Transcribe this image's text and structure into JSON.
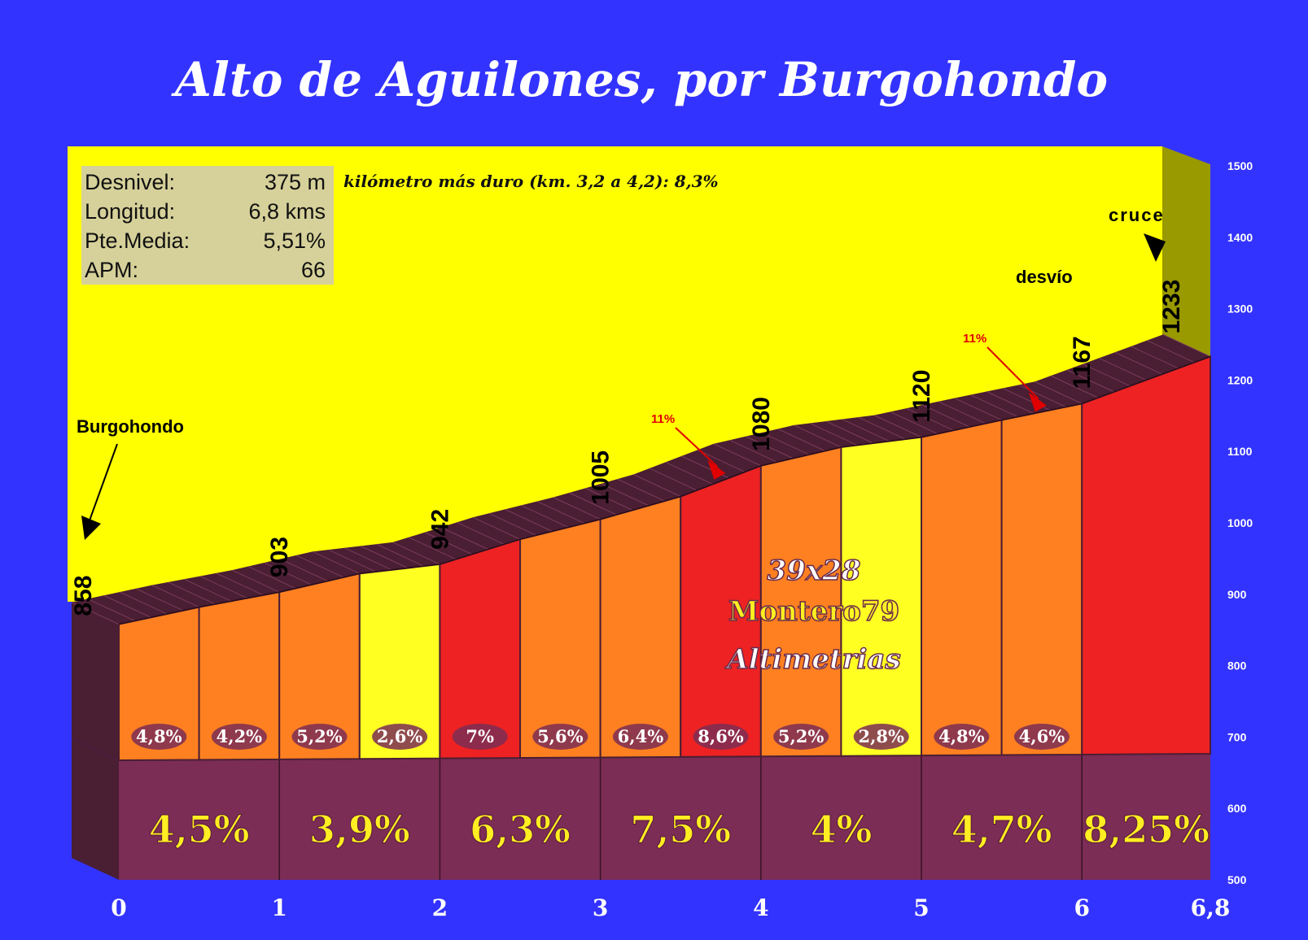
{
  "title": "Alto de Aguilones, por Burgohondo",
  "stats": [
    {
      "label": "Desnivel:",
      "value": "375 m"
    },
    {
      "label": "Longitud:",
      "value": "6,8 kms"
    },
    {
      "label": "Pte.Media:",
      "value": "5,51%"
    },
    {
      "label": "APM:",
      "value": "66"
    }
  ],
  "note": "kilómetro más duro (km. 3,2 a 4,2):  8,3%",
  "credits": {
    "gearing": "39x28",
    "author": "Montero79",
    "site": "Altimetrias"
  },
  "colors": {
    "background": "#3333ff",
    "sky": "#ffff00",
    "base": "#7b2d55",
    "orange": "#ff8020",
    "yellow": "#ffff22",
    "red": "#ee2222",
    "side": "#4a1e33",
    "tower": "#999900"
  },
  "chart_data": {
    "type": "area",
    "xlabel": "",
    "ylabel": "",
    "xlim": [
      0,
      6.8
    ],
    "ylim": [
      500,
      1500
    ],
    "x_ticks": [
      "0",
      "1",
      "2",
      "3",
      "4",
      "5",
      "6",
      "6,8"
    ],
    "y_ticks": [
      "1500",
      "1400",
      "1300",
      "1200",
      "1100",
      "1000",
      "900",
      "800",
      "700",
      "600",
      "500"
    ],
    "profile": [
      {
        "km": 0,
        "elev": 858
      },
      {
        "km": 0.5,
        "elev": 882
      },
      {
        "km": 1,
        "elev": 903
      },
      {
        "km": 1.5,
        "elev": 929
      },
      {
        "km": 2,
        "elev": 942
      },
      {
        "km": 2.5,
        "elev": 977
      },
      {
        "km": 3,
        "elev": 1005
      },
      {
        "km": 3.5,
        "elev": 1037
      },
      {
        "km": 4,
        "elev": 1080
      },
      {
        "km": 4.5,
        "elev": 1106
      },
      {
        "km": 5,
        "elev": 1120
      },
      {
        "km": 5.5,
        "elev": 1144
      },
      {
        "km": 6,
        "elev": 1167
      },
      {
        "km": 6.8,
        "elev": 1233
      }
    ],
    "half_km_gradients": [
      {
        "label": "4,8%",
        "color": "orange"
      },
      {
        "label": "4,2%",
        "color": "orange"
      },
      {
        "label": "5,2%",
        "color": "orange"
      },
      {
        "label": "2,6%",
        "color": "yellow"
      },
      {
        "label": "7%",
        "color": "red"
      },
      {
        "label": "5,6%",
        "color": "orange"
      },
      {
        "label": "6,4%",
        "color": "orange"
      },
      {
        "label": "8,6%",
        "color": "red"
      },
      {
        "label": "5,2%",
        "color": "orange"
      },
      {
        "label": "2,8%",
        "color": "yellow"
      },
      {
        "label": "4,8%",
        "color": "orange"
      },
      {
        "label": "4,6%",
        "color": "orange"
      },
      {
        "label": "",
        "color": "red"
      }
    ],
    "km_gradients": [
      "4,5%",
      "3,9%",
      "6,3%",
      "7,5%",
      "4%",
      "4,7%",
      "8,25%"
    ],
    "elevation_labels": [
      {
        "km": 0,
        "text": "858"
      },
      {
        "km": 1,
        "text": "903"
      },
      {
        "km": 2,
        "text": "942"
      },
      {
        "km": 3,
        "text": "1005"
      },
      {
        "km": 4,
        "text": "1080"
      },
      {
        "km": 5,
        "text": "1120"
      },
      {
        "km": 6,
        "text": "1167"
      },
      {
        "km": 6.8,
        "text": "1233"
      }
    ],
    "places": [
      {
        "km": 0,
        "text": "Burgohondo"
      },
      {
        "km": 6,
        "text": "desvío"
      },
      {
        "km": 6.8,
        "text": "cruce"
      }
    ],
    "steep_marks": [
      {
        "km": 3.8,
        "text": "11%"
      },
      {
        "km": 5.8,
        "text": "11%"
      }
    ]
  }
}
